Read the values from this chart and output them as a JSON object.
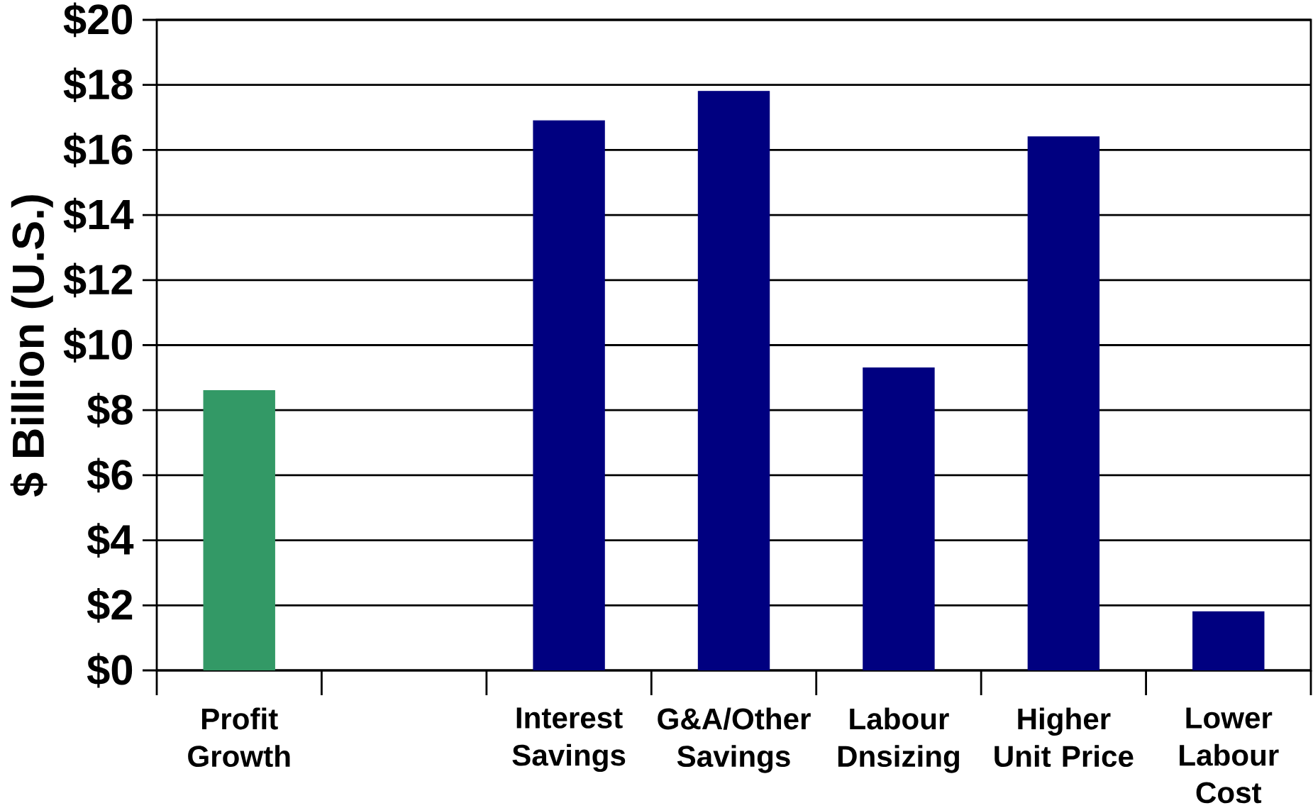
{
  "chart_data": {
    "type": "bar",
    "ylabel": "$ Billion (U.S.)",
    "categories": [
      "Profit Growth",
      null,
      "Interest Savings",
      "G&A/Other Savings",
      "Labour Dnsizing",
      "Higher Unit Price",
      "Lower Labour Cost"
    ],
    "values": [
      8.6,
      null,
      16.9,
      17.8,
      9.3,
      16.4,
      1.8
    ],
    "colors": [
      "#339966",
      "#000080",
      "#000080",
      "#000080",
      "#000080",
      "#000080",
      "#000080"
    ],
    "ylim": [
      0,
      20
    ],
    "yticks": [
      {
        "value": 0,
        "label": "$0"
      },
      {
        "value": 2,
        "label": "$2"
      },
      {
        "value": 4,
        "label": "$4"
      },
      {
        "value": 6,
        "label": "$6"
      },
      {
        "value": 8,
        "label": "$8"
      },
      {
        "value": 10,
        "label": "$10"
      },
      {
        "value": 12,
        "label": "$12"
      },
      {
        "value": 14,
        "label": "$14"
      },
      {
        "value": 16,
        "label": "$16"
      },
      {
        "value": 18,
        "label": "$18"
      },
      {
        "value": 20,
        "label": "$20"
      }
    ],
    "grid": "y"
  }
}
